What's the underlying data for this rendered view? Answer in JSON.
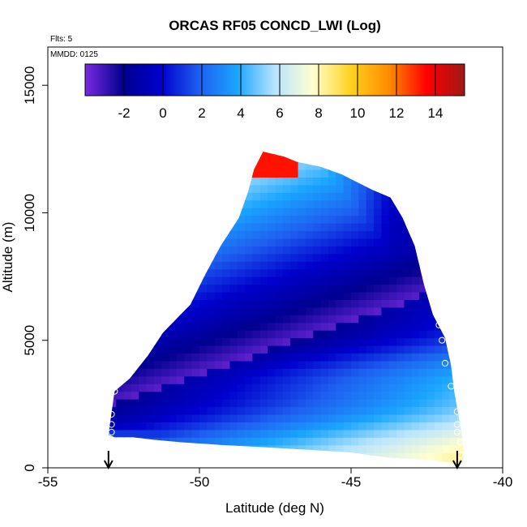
{
  "chart_data": {
    "type": "heatmap",
    "title": "ORCAS RF05 CONCD_LWI (Log)",
    "annotations": [
      "Flts: 5",
      "MMDD: 0125"
    ],
    "xlabel": "Latitude (deg N)",
    "ylabel": "Altitude (m)",
    "xlim": [
      -55,
      -40
    ],
    "ylim": [
      0,
      16500
    ],
    "xticks": [
      -55,
      -50,
      -45,
      -40
    ],
    "xtick_labels": [
      "-55",
      "-50",
      "-45",
      "-40"
    ],
    "yticks": [
      0,
      5000,
      10000,
      15000
    ],
    "ytick_labels": [
      "0",
      "5000",
      "10000",
      "15000"
    ],
    "colorbar": {
      "placement": "top-inside",
      "range": [
        -4,
        15.5
      ],
      "ticks": [
        -2,
        0,
        2,
        4,
        6,
        8,
        10,
        12,
        14
      ],
      "tick_labels": [
        "-2",
        "0",
        "2",
        "4",
        "6",
        "8",
        "10",
        "12",
        "14"
      ],
      "colors": [
        "#7b2be0",
        "#00008f",
        "#0000cd",
        "#1e5ff0",
        "#1aa5ff",
        "#b8e4ff",
        "#ffffd0",
        "#ffd21e",
        "#ff8c00",
        "#ff0000",
        "#a01818"
      ]
    },
    "region_outline": {
      "description": "filled cross-section region of the heatmap",
      "lat": [
        -53.0,
        -52.8,
        -52.3,
        -51.7,
        -51.2,
        -50.3,
        -49.8,
        -49.3,
        -48.7,
        -48.4,
        -48.2,
        -47.9,
        -47.2,
        -46.8,
        -46.0,
        -45.3,
        -44.8,
        -44.3,
        -43.7,
        -43.3,
        -42.9,
        -42.6,
        -42.3,
        -41.9,
        -41.7,
        -41.6,
        -41.3,
        -41.3,
        -41.7,
        -42.3,
        -43.8,
        -45.0,
        -46.3,
        -47.8,
        -49.3,
        -50.6,
        -51.5,
        -52.2,
        -52.8,
        -53.0
      ],
      "alt": [
        1300,
        3000,
        3500,
        4400,
        5300,
        6400,
        7600,
        8700,
        9800,
        10800,
        11700,
        12400,
        12200,
        12000,
        11800,
        11500,
        11200,
        10900,
        10600,
        9800,
        8700,
        7200,
        6000,
        5100,
        4000,
        3000,
        1000,
        200,
        200,
        300,
        400,
        600,
        700,
        800,
        900,
        1000,
        1100,
        1200,
        1200,
        1300
      ]
    },
    "sample_points": [
      {
        "lat": -52.8,
        "alt": 3000
      },
      {
        "lat": -52.9,
        "alt": 2100
      },
      {
        "lat": -52.9,
        "alt": 1700
      },
      {
        "lat": -52.9,
        "alt": 1400
      },
      {
        "lat": -48.3,
        "alt": 12400
      },
      {
        "lat": -43.4,
        "alt": 10600
      },
      {
        "lat": -42.8,
        "alt": 9300
      },
      {
        "lat": -42.6,
        "alt": 8600
      },
      {
        "lat": -42.3,
        "alt": 7000
      },
      {
        "lat": -42.2,
        "alt": 6100
      },
      {
        "lat": -42.1,
        "alt": 5600
      },
      {
        "lat": -42.0,
        "alt": 5000
      },
      {
        "lat": -41.9,
        "alt": 4100
      },
      {
        "lat": -41.7,
        "alt": 3200
      },
      {
        "lat": -41.5,
        "alt": 2200
      },
      {
        "lat": -41.5,
        "alt": 1700
      },
      {
        "lat": -41.5,
        "alt": 1400
      },
      {
        "lat": -41.4,
        "alt": 1000
      },
      {
        "lat": -41.4,
        "alt": 500
      },
      {
        "lat": -41.4,
        "alt": 200
      }
    ],
    "markers": [
      {
        "lat": -53.0,
        "symbol": "down-arrow"
      },
      {
        "lat": -41.5,
        "symbol": "down-arrow"
      }
    ],
    "grid": false
  }
}
